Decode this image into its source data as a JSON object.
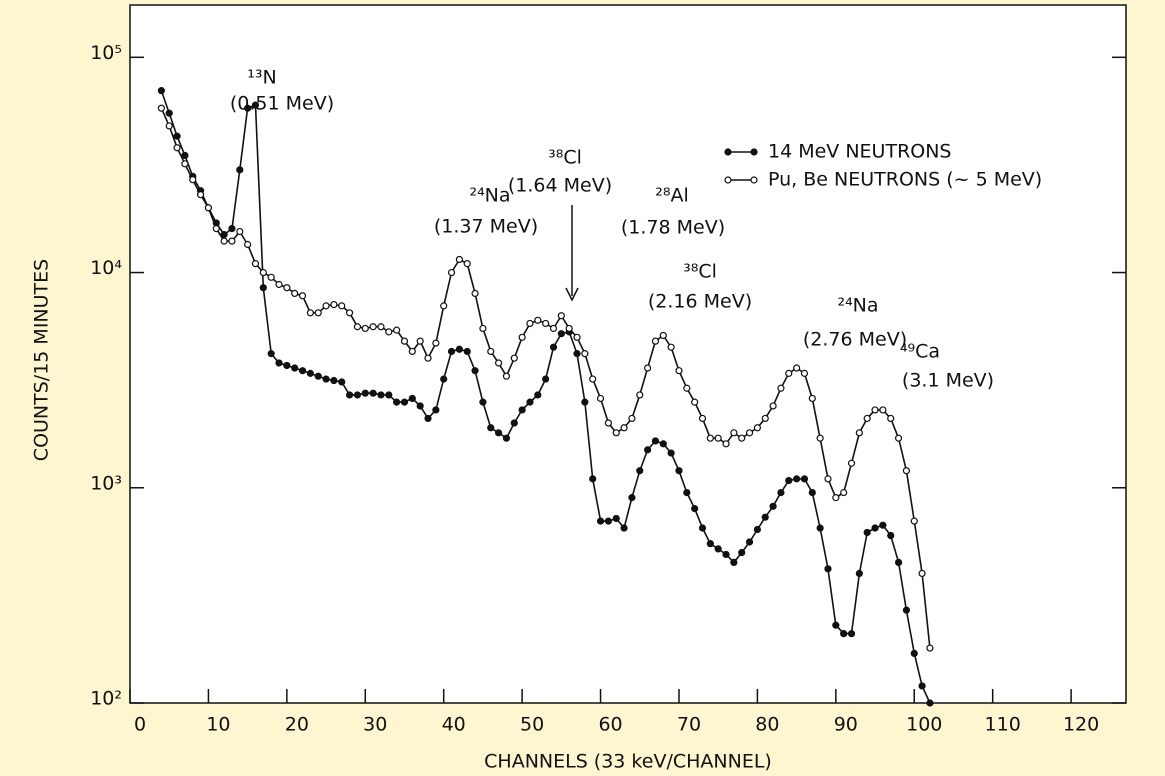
{
  "chart_data": {
    "type": "line",
    "xlabel": "CHANNELS (33 keV/CHANNEL)",
    "ylabel": "COUNTS/15 MINUTES",
    "log_y": true,
    "xlim": [
      0,
      127
    ],
    "ylim": [
      100,
      175000
    ],
    "xticks": [
      0,
      10,
      20,
      30,
      40,
      50,
      60,
      70,
      80,
      90,
      100,
      110,
      120
    ],
    "yticks": [
      {
        "value": 100,
        "label": "10²"
      },
      {
        "value": 1000,
        "label": "10³"
      },
      {
        "value": 10000,
        "label": "10⁴"
      },
      {
        "value": 100000,
        "label": "10⁵"
      }
    ],
    "x": [
      4,
      5,
      6,
      7,
      8,
      9,
      10,
      11,
      12,
      13,
      14,
      15,
      16,
      17,
      18,
      19,
      20,
      21,
      22,
      23,
      24,
      25,
      26,
      27,
      28,
      29,
      30,
      31,
      32,
      33,
      34,
      35,
      36,
      37,
      38,
      39,
      40,
      41,
      42,
      43,
      44,
      45,
      46,
      47,
      48,
      49,
      50,
      51,
      52,
      53,
      54,
      55,
      56,
      57,
      58,
      59,
      60,
      61,
      62,
      63,
      64,
      65,
      66,
      67,
      68,
      69,
      70,
      71,
      72,
      73,
      74,
      75,
      76,
      77,
      78,
      79,
      80,
      81,
      82,
      83,
      84,
      85,
      86,
      87,
      88,
      89,
      90,
      91,
      92,
      93,
      94,
      95,
      96,
      97,
      98,
      99,
      100,
      101,
      102
    ],
    "series": [
      {
        "name": "14 MeV NEUTRONS",
        "color": "#111111",
        "marker": "filled",
        "values": [
          70000,
          55000,
          43000,
          35000,
          28000,
          24000,
          20000,
          17000,
          15000,
          16000,
          30000,
          58000,
          60000,
          8500,
          4200,
          3800,
          3700,
          3600,
          3500,
          3400,
          3300,
          3200,
          3150,
          3100,
          2700,
          2700,
          2750,
          2750,
          2700,
          2700,
          2500,
          2500,
          2600,
          2400,
          2100,
          2300,
          3200,
          4300,
          4400,
          4300,
          3500,
          2500,
          1900,
          1800,
          1700,
          2000,
          2300,
          2500,
          2700,
          3200,
          4500,
          5200,
          5300,
          4200,
          2500,
          1100,
          700,
          700,
          720,
          650,
          900,
          1200,
          1500,
          1650,
          1600,
          1450,
          1200,
          950,
          800,
          650,
          550,
          520,
          490,
          450,
          500,
          560,
          640,
          730,
          820,
          950,
          1080,
          1100,
          1100,
          950,
          650,
          420,
          230,
          210,
          210,
          400,
          620,
          650,
          670,
          600,
          450,
          270,
          170,
          120,
          100
        ]
      },
      {
        "name": "Pu, Be NEUTRONS (~ 5 MeV)",
        "color": "#111111",
        "marker": "open",
        "values": [
          58000,
          48000,
          38000,
          32000,
          27000,
          23000,
          20000,
          16000,
          14000,
          14000,
          15500,
          13500,
          11000,
          10000,
          9500,
          8800,
          8500,
          8000,
          7800,
          6500,
          6500,
          7000,
          7100,
          7000,
          6500,
          5600,
          5500,
          5600,
          5600,
          5300,
          5400,
          4800,
          4300,
          4800,
          4000,
          4700,
          7000,
          10000,
          11500,
          11000,
          8000,
          5500,
          4300,
          3800,
          3300,
          4000,
          5000,
          5800,
          6000,
          5800,
          5500,
          6300,
          5500,
          5000,
          4200,
          3200,
          2600,
          2000,
          1800,
          1900,
          2100,
          2700,
          3600,
          4800,
          5100,
          4500,
          3500,
          2900,
          2500,
          2100,
          1700,
          1700,
          1600,
          1800,
          1700,
          1800,
          1900,
          2100,
          2400,
          2900,
          3400,
          3600,
          3400,
          2600,
          1700,
          1100,
          900,
          950,
          1300,
          1800,
          2100,
          2300,
          2300,
          2100,
          1700,
          1200,
          700,
          400,
          180
        ]
      }
    ],
    "annotations": [
      {
        "isotope": "¹³N",
        "energy": "(0.51 MeV)"
      },
      {
        "isotope": "²⁴Na",
        "energy": "(1.37 MeV)"
      },
      {
        "isotope": "³⁸Cl",
        "energy": "(1.64 MeV)"
      },
      {
        "isotope": "²⁸Al",
        "energy": "(1.78 MeV)"
      },
      {
        "isotope": "³⁸Cl",
        "energy": "(2.16 MeV)"
      },
      {
        "isotope": "²⁴Na",
        "energy": "(2.76 MeV)"
      },
      {
        "isotope": "⁴⁹Ca",
        "energy": "(3.1 MeV)"
      }
    ]
  }
}
